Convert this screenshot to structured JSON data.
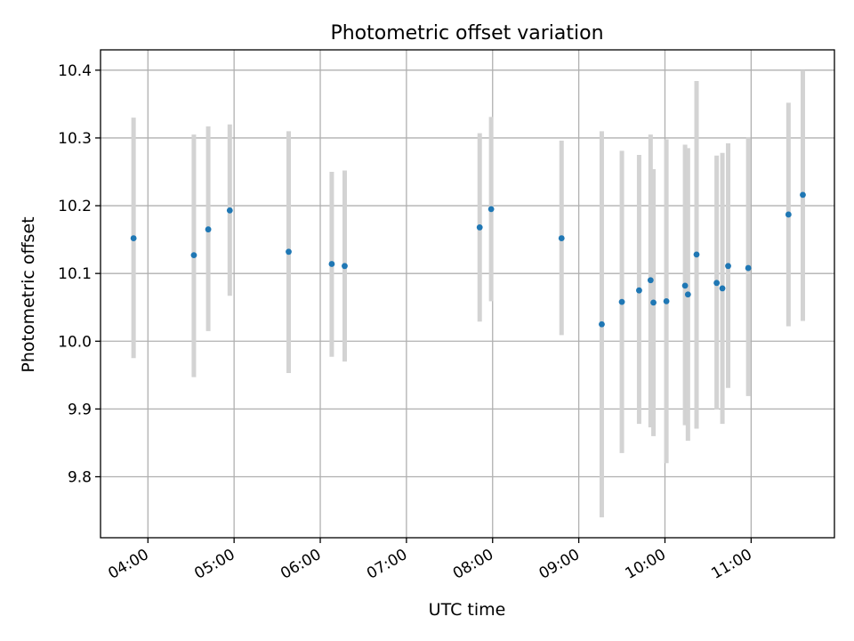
{
  "chart_data": {
    "type": "scatter",
    "title": "Photometric offset variation",
    "xlabel": "UTC time",
    "ylabel": "Photometric offset",
    "x_ticks": [
      "04:00",
      "05:00",
      "06:00",
      "07:00",
      "08:00",
      "09:00",
      "10:00",
      "11:00"
    ],
    "y_ticks": [
      "9.8",
      "9.9",
      "10.0",
      "10.1",
      "10.2",
      "10.3",
      "10.4"
    ],
    "xlim": [
      "03:27",
      "11:58"
    ],
    "ylim": [
      9.71,
      10.43
    ],
    "grid": true,
    "colors": {
      "point": "#1f77b4",
      "errorbar": "#d3d3d3",
      "grid": "#b0b0b0"
    },
    "points": [
      {
        "t": "03:50",
        "y": 10.152,
        "lo": 9.975,
        "hi": 10.33
      },
      {
        "t": "04:32",
        "y": 10.127,
        "lo": 9.947,
        "hi": 10.305
      },
      {
        "t": "04:42",
        "y": 10.165,
        "lo": 10.015,
        "hi": 10.317
      },
      {
        "t": "04:57",
        "y": 10.193,
        "lo": 10.067,
        "hi": 10.32
      },
      {
        "t": "05:38",
        "y": 10.132,
        "lo": 9.953,
        "hi": 10.31
      },
      {
        "t": "06:08",
        "y": 10.114,
        "lo": 9.977,
        "hi": 10.25
      },
      {
        "t": "06:17",
        "y": 10.111,
        "lo": 9.97,
        "hi": 10.252
      },
      {
        "t": "07:51",
        "y": 10.168,
        "lo": 10.029,
        "hi": 10.307
      },
      {
        "t": "07:59",
        "y": 10.195,
        "lo": 10.059,
        "hi": 10.331
      },
      {
        "t": "08:48",
        "y": 10.152,
        "lo": 10.009,
        "hi": 10.296
      },
      {
        "t": "09:16",
        "y": 10.025,
        "lo": 9.74,
        "hi": 10.31
      },
      {
        "t": "09:30",
        "y": 10.058,
        "lo": 9.835,
        "hi": 10.281
      },
      {
        "t": "09:42",
        "y": 10.075,
        "lo": 9.878,
        "hi": 10.275
      },
      {
        "t": "09:50",
        "y": 10.09,
        "lo": 9.873,
        "hi": 10.305
      },
      {
        "t": "09:52",
        "y": 10.057,
        "lo": 9.86,
        "hi": 10.254
      },
      {
        "t": "10:01",
        "y": 10.059,
        "lo": 9.82,
        "hi": 10.298
      },
      {
        "t": "10:14",
        "y": 10.082,
        "lo": 9.876,
        "hi": 10.29
      },
      {
        "t": "10:16",
        "y": 10.069,
        "lo": 9.853,
        "hi": 10.285
      },
      {
        "t": "10:22",
        "y": 10.128,
        "lo": 9.871,
        "hi": 10.384
      },
      {
        "t": "10:36",
        "y": 10.086,
        "lo": 9.899,
        "hi": 10.274
      },
      {
        "t": "10:40",
        "y": 10.078,
        "lo": 9.878,
        "hi": 10.278
      },
      {
        "t": "10:44",
        "y": 10.111,
        "lo": 9.931,
        "hi": 10.292
      },
      {
        "t": "10:58",
        "y": 10.108,
        "lo": 9.919,
        "hi": 10.301
      },
      {
        "t": "11:26",
        "y": 10.187,
        "lo": 10.022,
        "hi": 10.352
      },
      {
        "t": "11:36",
        "y": 10.216,
        "lo": 10.03,
        "hi": 10.4
      }
    ]
  }
}
